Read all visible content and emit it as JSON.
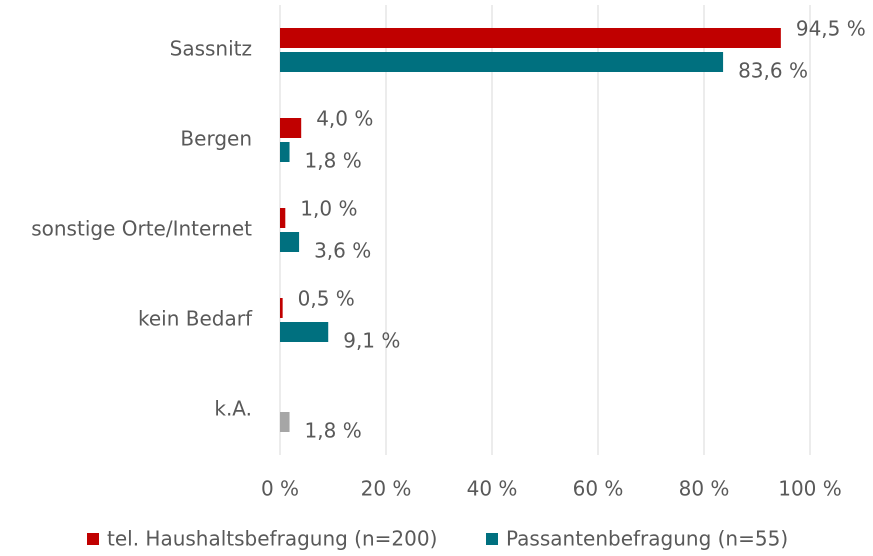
{
  "chart_data": {
    "type": "hbar",
    "categories": [
      "Sassnitz",
      "Bergen",
      "sonstige Orte/Internet",
      "kein Bedarf",
      "k.A."
    ],
    "series": [
      {
        "name": "tel. Haushaltsbefragung (n=200)",
        "color": "#c00000",
        "values": [
          94.5,
          4.0,
          1.0,
          0.5,
          null
        ],
        "value_labels": [
          "94,5 %",
          "4,0 %",
          "1,0 %",
          "0,5 %",
          null
        ]
      },
      {
        "name": "Passantenbefragung (n=55)",
        "color": "#00707f",
        "colors": [
          "#00707f",
          "#00707f",
          "#00707f",
          "#00707f",
          "#a6a6a6"
        ],
        "values": [
          83.6,
          1.8,
          3.6,
          9.1,
          1.8
        ],
        "value_labels": [
          "83,6 %",
          "1,8 %",
          "3,6 %",
          "9,1 %",
          "1,8 %"
        ]
      }
    ],
    "xlim": [
      0,
      100
    ],
    "xticks": [
      {
        "value": 0,
        "label": "0 %"
      },
      {
        "value": 20,
        "label": "20 %"
      },
      {
        "value": 40,
        "label": "40 %"
      },
      {
        "value": 60,
        "label": "60 %"
      },
      {
        "value": 80,
        "label": "80 %"
      },
      {
        "value": 100,
        "label": "100 %"
      }
    ],
    "grid": true,
    "legend": "bottom"
  }
}
